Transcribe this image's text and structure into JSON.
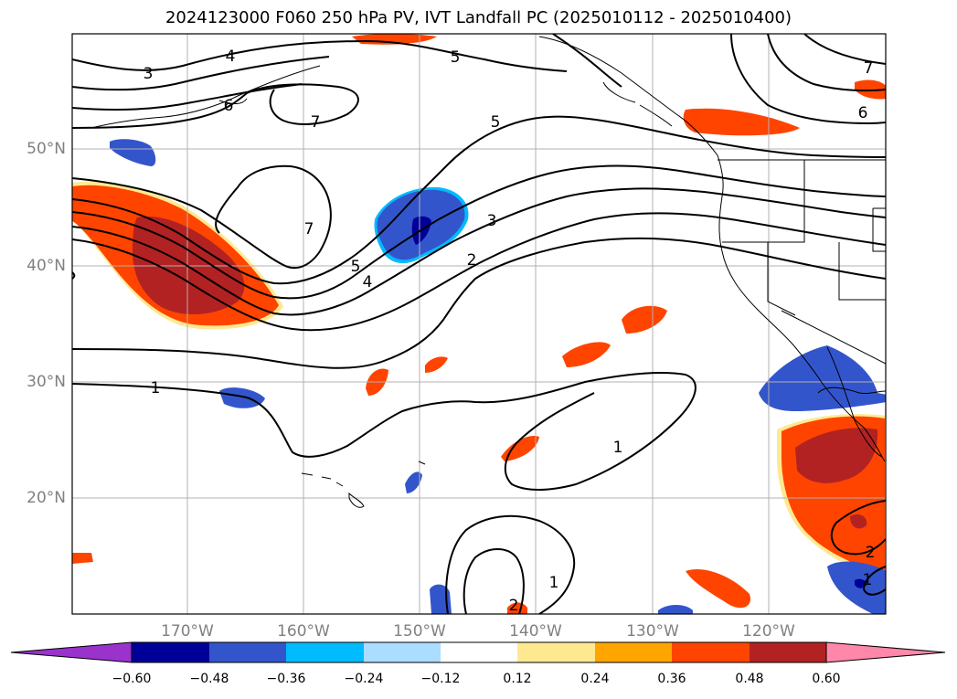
{
  "title": "2024123000 F060 250 hPa PV, IVT Landfall PC (2025010112 - 2025010400)",
  "latitude_labels": [
    "50°N",
    "40°N",
    "30°N",
    "20°N"
  ],
  "longitude_labels": [
    "170°W",
    "160°W",
    "150°W",
    "140°W",
    "130°W",
    "120°W"
  ],
  "contour_labels": [
    "3",
    "4",
    "6",
    "5",
    "7",
    "5",
    "7",
    "5",
    "4",
    "3",
    "2",
    "1",
    "1",
    "1",
    "2",
    "1",
    "2",
    "6",
    "7"
  ],
  "colorbar": {
    "ticks": [
      "−0.60",
      "−0.48",
      "−0.36",
      "−0.24",
      "−0.12",
      "0.12",
      "0.24",
      "0.36",
      "0.48",
      "0.60"
    ],
    "colors": [
      "#9933cc",
      "#000099",
      "#3355cc",
      "#00bbff",
      "#aaddff",
      "#ffffff",
      "#ffe990",
      "#ffa500",
      "#ff4400",
      "#b22222",
      "#ff88aa"
    ]
  }
}
